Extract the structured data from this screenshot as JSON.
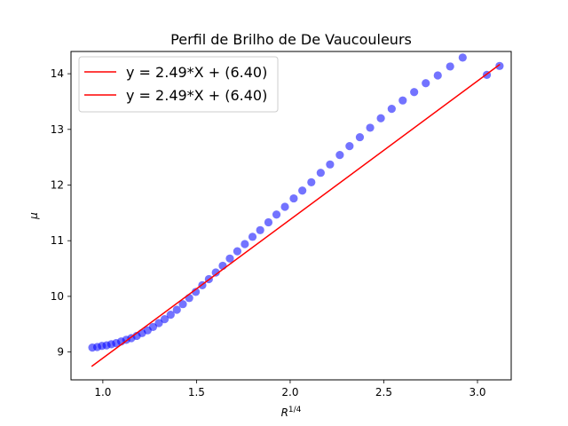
{
  "chart_data": {
    "type": "scatter",
    "title": "Perfil de Brilho de De Vaucouleurs",
    "xlabel_base": "R",
    "xlabel_sup": "1/4",
    "ylabel": "μ",
    "xlim": [
      0.83,
      3.18
    ],
    "ylim": [
      8.5,
      14.4
    ],
    "xticks": [
      1.0,
      1.5,
      2.0,
      2.5,
      3.0
    ],
    "xtick_labels": [
      "1.0",
      "1.5",
      "2.0",
      "2.5",
      "3.0"
    ],
    "yticks": [
      9,
      10,
      11,
      12,
      13,
      14
    ],
    "ytick_labels": [
      "9",
      "10",
      "11",
      "12",
      "13",
      "14"
    ],
    "grid": false,
    "legend_position": "top-left",
    "legend": [
      {
        "label": "y = 2.49*X + (6.40)",
        "color": "#ff0000"
      },
      {
        "label": "y = 2.49*X + (6.40)",
        "color": "#ff0000"
      }
    ],
    "fit_line": {
      "slope": 2.49,
      "intercept": 6.4,
      "x_range": [
        0.94,
        3.12
      ],
      "color": "#ff0000"
    },
    "marker_color": "#0000ff",
    "points": [
      [
        0.944,
        9.08
      ],
      [
        0.97,
        9.09
      ],
      [
        0.995,
        9.11
      ],
      [
        1.02,
        9.12
      ],
      [
        1.045,
        9.14
      ],
      [
        1.071,
        9.16
      ],
      [
        1.098,
        9.19
      ],
      [
        1.125,
        9.22
      ],
      [
        1.152,
        9.25
      ],
      [
        1.181,
        9.29
      ],
      [
        1.209,
        9.34
      ],
      [
        1.239,
        9.39
      ],
      [
        1.268,
        9.45
      ],
      [
        1.299,
        9.52
      ],
      [
        1.33,
        9.59
      ],
      [
        1.362,
        9.67
      ],
      [
        1.395,
        9.76
      ],
      [
        1.427,
        9.86
      ],
      [
        1.461,
        9.97
      ],
      [
        1.496,
        10.08
      ],
      [
        1.531,
        10.2
      ],
      [
        1.566,
        10.31
      ],
      [
        1.603,
        10.43
      ],
      [
        1.64,
        10.55
      ],
      [
        1.678,
        10.68
      ],
      [
        1.718,
        10.81
      ],
      [
        1.758,
        10.94
      ],
      [
        1.799,
        11.07
      ],
      [
        1.84,
        11.19
      ],
      [
        1.884,
        11.33
      ],
      [
        1.927,
        11.47
      ],
      [
        1.972,
        11.61
      ],
      [
        2.019,
        11.76
      ],
      [
        2.065,
        11.9
      ],
      [
        2.113,
        12.05
      ],
      [
        2.163,
        12.22
      ],
      [
        2.213,
        12.37
      ],
      [
        2.265,
        12.54
      ],
      [
        2.317,
        12.7
      ],
      [
        2.372,
        12.86
      ],
      [
        2.427,
        13.03
      ],
      [
        2.484,
        13.2
      ],
      [
        2.542,
        13.37
      ],
      [
        2.601,
        13.52
      ],
      [
        2.662,
        13.67
      ],
      [
        2.724,
        13.83
      ],
      [
        2.788,
        13.97
      ],
      [
        2.854,
        14.13
      ],
      [
        2.921,
        14.29
      ],
      [
        3.05,
        13.98
      ],
      [
        3.118,
        14.14
      ]
    ]
  }
}
